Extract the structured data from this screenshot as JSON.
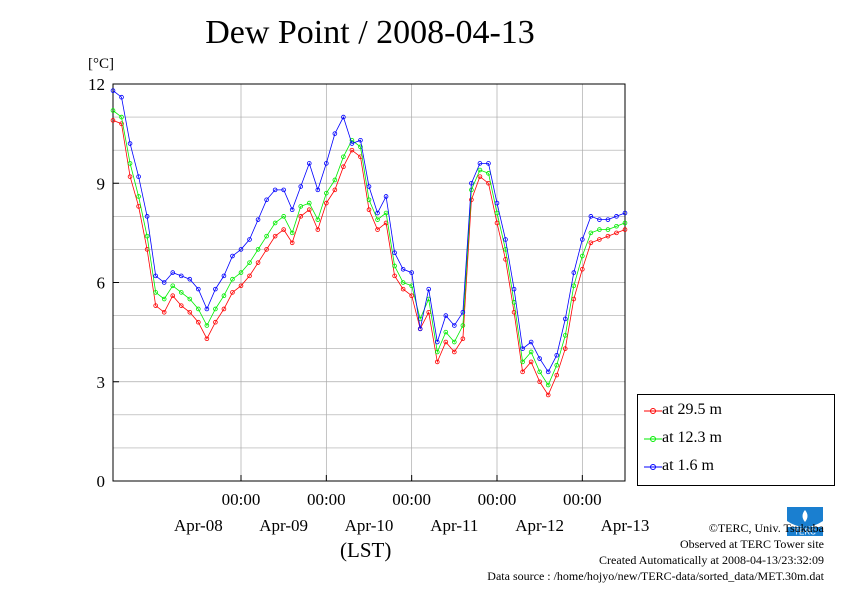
{
  "chart_data": {
    "type": "line",
    "title": "Dew Point / 2008-04-13",
    "ylabel": "[°C]",
    "xlabel": "(LST)",
    "ylim": [
      0,
      12
    ],
    "yticks": [
      0,
      3,
      6,
      9,
      12
    ],
    "xlim": [
      0,
      6
    ],
    "x_unit": "days from 2008-04-07 12:00 LST",
    "x_tick_labels": [
      {
        "x": 1.5,
        "time": "00:00",
        "date": "Apr-08"
      },
      {
        "x": 2.5,
        "time": "00:00",
        "date": "Apr-09"
      },
      {
        "x": 3.5,
        "time": "00:00",
        "date": "Apr-10"
      },
      {
        "x": 4.5,
        "time": "00:00",
        "date": "Apr-11"
      },
      {
        "x": 5.5,
        "time": "00:00",
        "date": "Apr-12"
      }
    ],
    "x_extra_date_label": "Apr-13",
    "grid": true,
    "legend_position": "right",
    "series": [
      {
        "name": "at 29.5 m",
        "color": "#ff0000",
        "x": [
          0.0,
          0.1,
          0.2,
          0.3,
          0.4,
          0.5,
          0.6,
          0.7,
          0.8,
          0.9,
          1.0,
          1.1,
          1.2,
          1.3,
          1.4,
          1.5,
          1.6,
          1.7,
          1.8,
          1.9,
          2.0,
          2.1,
          2.2,
          2.3,
          2.4,
          2.5,
          2.6,
          2.7,
          2.8,
          2.9,
          3.0,
          3.1,
          3.2,
          3.3,
          3.4,
          3.5,
          3.6,
          3.7,
          3.8,
          3.9,
          4.0,
          4.1,
          4.2,
          4.3,
          4.4,
          4.5,
          4.6,
          4.7,
          4.8,
          4.9,
          5.0,
          5.1,
          5.2,
          5.3,
          5.4,
          5.5,
          5.6,
          5.7,
          5.8,
          5.9,
          6.0
        ],
        "values": [
          10.9,
          10.8,
          9.2,
          8.3,
          7.0,
          5.3,
          5.1,
          5.6,
          5.3,
          5.1,
          4.8,
          4.3,
          4.8,
          5.2,
          5.7,
          5.9,
          6.2,
          6.6,
          7.0,
          7.4,
          7.6,
          7.2,
          8.0,
          8.2,
          7.6,
          8.4,
          8.8,
          9.5,
          10.0,
          9.8,
          8.2,
          7.6,
          7.8,
          6.2,
          5.8,
          5.6,
          4.6,
          5.1,
          3.6,
          4.2,
          3.9,
          4.3,
          8.5,
          9.2,
          9.0,
          7.8,
          6.7,
          5.1,
          3.3,
          3.6,
          3.0,
          2.6,
          3.2,
          4.0,
          5.5,
          6.4,
          7.2,
          7.3,
          7.4,
          7.5,
          7.6
        ]
      },
      {
        "name": "at 12.3 m",
        "color": "#00ee00",
        "x": [
          0.0,
          0.1,
          0.2,
          0.3,
          0.4,
          0.5,
          0.6,
          0.7,
          0.8,
          0.9,
          1.0,
          1.1,
          1.2,
          1.3,
          1.4,
          1.5,
          1.6,
          1.7,
          1.8,
          1.9,
          2.0,
          2.1,
          2.2,
          2.3,
          2.4,
          2.5,
          2.6,
          2.7,
          2.8,
          2.9,
          3.0,
          3.1,
          3.2,
          3.3,
          3.4,
          3.5,
          3.6,
          3.7,
          3.8,
          3.9,
          4.0,
          4.1,
          4.2,
          4.3,
          4.4,
          4.5,
          4.6,
          4.7,
          4.8,
          4.9,
          5.0,
          5.1,
          5.2,
          5.3,
          5.4,
          5.5,
          5.6,
          5.7,
          5.8,
          5.9,
          6.0
        ],
        "values": [
          11.2,
          11.0,
          9.6,
          8.6,
          7.4,
          5.7,
          5.5,
          5.9,
          5.7,
          5.5,
          5.2,
          4.7,
          5.2,
          5.6,
          6.1,
          6.3,
          6.6,
          7.0,
          7.4,
          7.8,
          8.0,
          7.5,
          8.3,
          8.4,
          7.9,
          8.7,
          9.1,
          9.8,
          10.3,
          10.1,
          8.5,
          7.9,
          8.1,
          6.5,
          6.0,
          5.9,
          4.9,
          5.5,
          3.9,
          4.5,
          4.2,
          4.7,
          8.8,
          9.4,
          9.3,
          8.1,
          7.0,
          5.4,
          3.6,
          3.9,
          3.3,
          2.9,
          3.5,
          4.4,
          5.9,
          6.8,
          7.5,
          7.6,
          7.6,
          7.7,
          7.8
        ]
      },
      {
        "name": "at 1.6 m",
        "color": "#0000ff",
        "x": [
          0.0,
          0.1,
          0.2,
          0.3,
          0.4,
          0.5,
          0.6,
          0.7,
          0.8,
          0.9,
          1.0,
          1.1,
          1.2,
          1.3,
          1.4,
          1.5,
          1.6,
          1.7,
          1.8,
          1.9,
          2.0,
          2.1,
          2.2,
          2.3,
          2.4,
          2.5,
          2.6,
          2.7,
          2.8,
          2.9,
          3.0,
          3.1,
          3.2,
          3.3,
          3.4,
          3.5,
          3.6,
          3.7,
          3.8,
          3.9,
          4.0,
          4.1,
          4.2,
          4.3,
          4.4,
          4.5,
          4.6,
          4.7,
          4.8,
          4.9,
          5.0,
          5.1,
          5.2,
          5.3,
          5.4,
          5.5,
          5.6,
          5.7,
          5.8,
          5.9,
          6.0
        ],
        "values": [
          11.8,
          11.6,
          10.2,
          9.2,
          8.0,
          6.2,
          6.0,
          6.3,
          6.2,
          6.1,
          5.8,
          5.2,
          5.8,
          6.2,
          6.8,
          7.0,
          7.3,
          7.9,
          8.5,
          8.8,
          8.8,
          8.2,
          8.9,
          9.6,
          8.8,
          9.6,
          10.5,
          11.0,
          10.2,
          10.3,
          8.9,
          8.1,
          8.6,
          6.9,
          6.4,
          6.3,
          4.6,
          5.8,
          4.2,
          5.0,
          4.7,
          5.1,
          9.0,
          9.6,
          9.6,
          8.4,
          7.3,
          5.8,
          4.0,
          4.2,
          3.7,
          3.3,
          3.8,
          4.9,
          6.3,
          7.3,
          8.0,
          7.9,
          7.9,
          8.0,
          8.1
        ]
      }
    ]
  },
  "title": "Dew Point / 2008-04-13",
  "unit_label": "[°C]",
  "axis_label": "(LST)",
  "legend": [
    "at 29.5 m",
    "at 12.3 m",
    "at 1.6 m"
  ],
  "credits": {
    "copyright": "©TERC, Univ. Tsukuba",
    "observed": "Observed at TERC Tower site",
    "created": "Created Automatically at 2008-04-13/23:32:09",
    "source": "Data source : /home/hojyo/new/TERC-data/sorted_data/MET.30m.dat",
    "logo_text": "TERC"
  }
}
